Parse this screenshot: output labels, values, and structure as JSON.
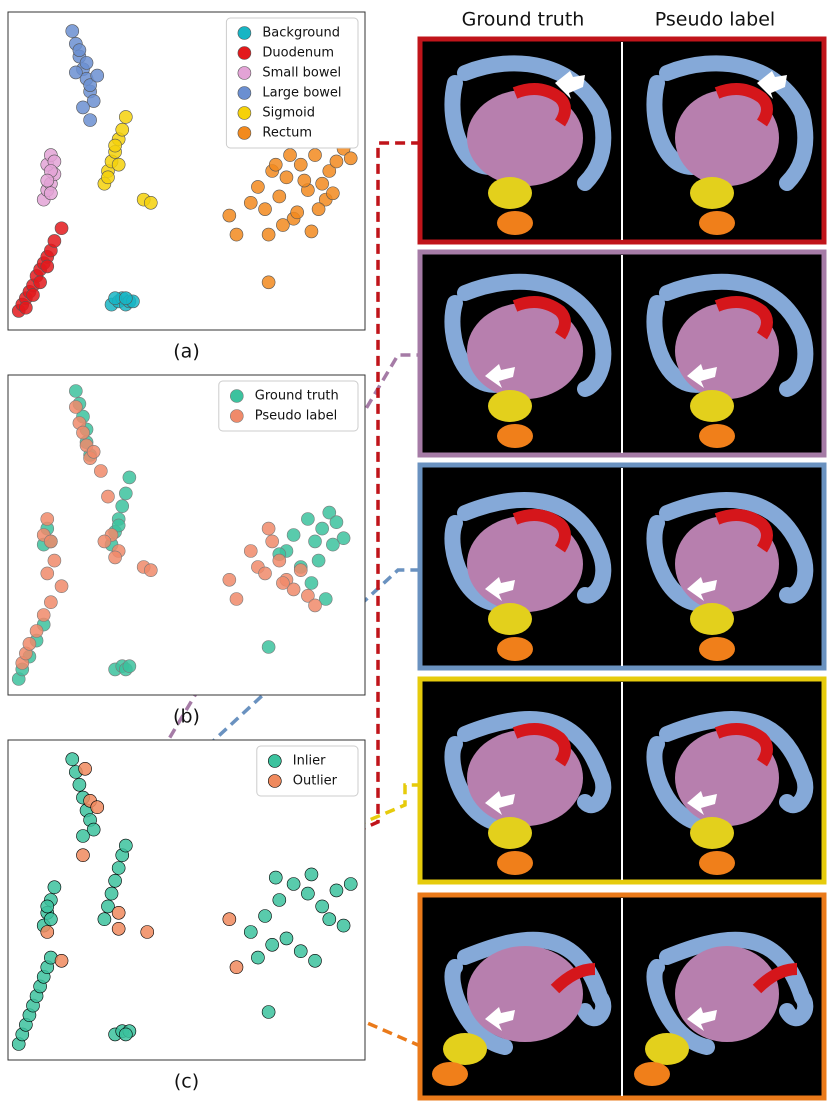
{
  "chart_data": [
    {
      "type": "scatter",
      "caption": "(a)",
      "xlim": [
        0,
        100
      ],
      "ylim": [
        0,
        100
      ],
      "legend": "upper right",
      "marker_edgecolor": "#555555",
      "series": [
        {
          "name": "Background",
          "color": "#17b5c4",
          "x": [
            29,
            31,
            32,
            33,
            34,
            35,
            30,
            33
          ],
          "y": [
            8,
            9,
            10,
            8,
            9,
            9,
            10,
            10
          ]
        },
        {
          "name": "Duodenum",
          "color": "#e3191c",
          "x": [
            3,
            4,
            5,
            6,
            7,
            8,
            9,
            10,
            11,
            12,
            13,
            15,
            5,
            7,
            9,
            11
          ],
          "y": [
            6,
            8,
            10,
            12,
            14,
            17,
            19,
            21,
            23,
            25,
            28,
            32,
            7,
            11,
            15,
            20
          ]
        },
        {
          "name": "Small bowel",
          "color": "#e3a3d6",
          "x": [
            10,
            11,
            12,
            13,
            11,
            12,
            13,
            12,
            11,
            12
          ],
          "y": [
            41,
            44,
            46,
            49,
            52,
            55,
            53,
            50,
            47,
            43
          ]
        },
        {
          "name": "Large bowel",
          "color": "#6b8fd1",
          "x": [
            18,
            19,
            20,
            21,
            22,
            23,
            24,
            21,
            20,
            22,
            23,
            19,
            25,
            23
          ],
          "y": [
            94,
            90,
            86,
            82,
            79,
            75,
            72,
            70,
            88,
            84,
            77,
            81,
            80,
            66
          ]
        },
        {
          "name": "Sigmoid",
          "color": "#f5d10a",
          "x": [
            27,
            28,
            29,
            30,
            31,
            32,
            33,
            30,
            28,
            31,
            38,
            40
          ],
          "y": [
            46,
            50,
            53,
            56,
            60,
            63,
            67,
            58,
            48,
            52,
            41,
            40
          ]
        },
        {
          "name": "Rectum",
          "color": "#f28a1e",
          "x": [
            68,
            70,
            72,
            74,
            76,
            78,
            80,
            82,
            84,
            86,
            88,
            90,
            92,
            94,
            96,
            73,
            77,
            81,
            85,
            89,
            75,
            79,
            83,
            87,
            91,
            62,
            64,
            73
          ],
          "y": [
            40,
            45,
            38,
            50,
            42,
            48,
            35,
            52,
            44,
            55,
            46,
            50,
            53,
            57,
            54,
            30,
            33,
            37,
            31,
            41,
            52,
            55,
            47,
            38,
            43,
            36,
            30,
            15
          ]
        }
      ]
    },
    {
      "type": "scatter",
      "caption": "(b)",
      "xlim": [
        0,
        100
      ],
      "ylim": [
        0,
        100
      ],
      "legend": "upper right",
      "marker_edgecolor": "#7a7a7a",
      "series": [
        {
          "name": "Ground truth",
          "color": "#3cc29e",
          "x": [
            19,
            20,
            21,
            22,
            22,
            23,
            29,
            30,
            31,
            32,
            33,
            34,
            31,
            10,
            11,
            12,
            3,
            4,
            6,
            8,
            10,
            30,
            32,
            33,
            34,
            78,
            80,
            82,
            84,
            86,
            88,
            90,
            92,
            94,
            85,
            87,
            89,
            91,
            76,
            73
          ],
          "y": [
            95,
            91,
            87,
            83,
            79,
            75,
            47,
            51,
            55,
            59,
            63,
            68,
            53,
            47,
            52,
            48,
            5,
            8,
            12,
            17,
            22,
            8,
            9,
            8,
            9,
            45,
            50,
            40,
            55,
            48,
            52,
            57,
            54,
            49,
            35,
            42,
            30,
            47,
            44,
            15
          ]
        },
        {
          "name": "Pseudo label",
          "color": "#f08a6a",
          "x": [
            19,
            20,
            21,
            22,
            23,
            24,
            26,
            28,
            29,
            31,
            27,
            30,
            10,
            11,
            12,
            13,
            11,
            4,
            5,
            6,
            8,
            10,
            12,
            15,
            62,
            64,
            68,
            70,
            72,
            74,
            76,
            78,
            80,
            82,
            84,
            86,
            73,
            77,
            38,
            40
          ],
          "y": [
            90,
            85,
            82,
            78,
            74,
            76,
            70,
            62,
            50,
            45,
            48,
            43,
            50,
            55,
            48,
            42,
            38,
            10,
            13,
            16,
            20,
            25,
            29,
            34,
            36,
            30,
            45,
            40,
            38,
            48,
            42,
            36,
            33,
            39,
            31,
            28,
            52,
            35,
            40,
            39
          ]
        }
      ]
    },
    {
      "type": "scatter",
      "caption": "(c)",
      "xlim": [
        0,
        100
      ],
      "ylim": [
        0,
        100
      ],
      "legend": "upper right",
      "marker_edgecolor": "#000000",
      "series": [
        {
          "name": "Inlier",
          "color": "#3cc29e",
          "x": [
            18,
            19,
            20,
            21,
            22,
            23,
            24,
            21,
            27,
            28,
            29,
            30,
            31,
            32,
            33,
            10,
            11,
            12,
            13,
            11,
            12,
            3,
            4,
            5,
            6,
            7,
            8,
            9,
            10,
            11,
            12,
            30,
            32,
            34,
            33,
            68,
            72,
            76,
            80,
            84,
            88,
            92,
            96,
            70,
            74,
            78,
            82,
            86,
            90,
            94,
            75,
            85,
            73
          ],
          "y": [
            94,
            90,
            86,
            82,
            78,
            75,
            72,
            70,
            44,
            48,
            52,
            56,
            60,
            64,
            67,
            42,
            46,
            50,
            54,
            48,
            44,
            5,
            8,
            11,
            14,
            17,
            20,
            23,
            26,
            29,
            32,
            8,
            9,
            9,
            8,
            40,
            45,
            50,
            55,
            52,
            48,
            53,
            55,
            32,
            36,
            38,
            34,
            31,
            44,
            42,
            57,
            58,
            15
          ]
        },
        {
          "name": "Outlier",
          "color": "#f08a5e",
          "x": [
            21.6,
            23,
            25,
            21,
            31,
            39,
            11,
            15,
            31,
            62,
            64
          ],
          "y": [
            91,
            81,
            79,
            64,
            46,
            40,
            40,
            31,
            41,
            44,
            29
          ]
        }
      ]
    }
  ],
  "renderings": {
    "columns": [
      "Ground truth",
      "Pseudo label"
    ]
  }
}
